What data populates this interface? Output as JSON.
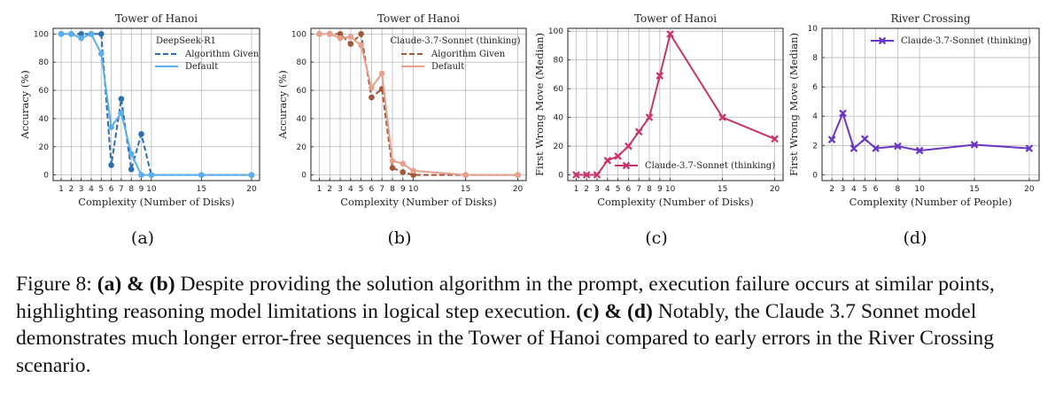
{
  "chart_data": [
    {
      "id": "a",
      "type": "line",
      "title": "Tower of Hanoi",
      "xlabel": "Complexity (Number of Disks)",
      "ylabel": "Accuracy (%)",
      "xlim": [
        0.2,
        20.8
      ],
      "ylim": [
        -4,
        104
      ],
      "xticks": [
        1,
        2,
        3,
        4,
        5,
        6,
        7,
        8,
        9,
        10,
        15,
        20
      ],
      "yticks": [
        0,
        20,
        40,
        60,
        80,
        100
      ],
      "grid": true,
      "legend_title": "DeepSeek-R1",
      "legend_position": "top-right",
      "series": [
        {
          "name": "Algorithm Given",
          "style": "dashed",
          "color": "#2f6db3",
          "x": [
            1,
            2,
            3,
            4,
            5,
            6,
            7,
            8,
            9,
            10,
            15,
            20
          ],
          "y": [
            100,
            100,
            100,
            100,
            100,
            7,
            54,
            4,
            29,
            0,
            0,
            0
          ]
        },
        {
          "name": "Default",
          "style": "solid",
          "color": "#5aaeea",
          "x": [
            1,
            2,
            3,
            4,
            5,
            6,
            7,
            8,
            9,
            10,
            15,
            20
          ],
          "y": [
            100,
            100,
            97,
            100,
            86,
            34,
            44,
            15,
            0,
            0,
            0,
            0
          ]
        }
      ]
    },
    {
      "id": "b",
      "type": "line",
      "title": "Tower of Hanoi",
      "xlabel": "Complexity (Number of Disks)",
      "ylabel": "Accuracy (%)",
      "xlim": [
        0.2,
        20.8
      ],
      "ylim": [
        -4,
        104
      ],
      "xticks": [
        1,
        2,
        3,
        4,
        5,
        6,
        7,
        8,
        9,
        10,
        15,
        20
      ],
      "yticks": [
        0,
        20,
        40,
        60,
        80,
        100
      ],
      "grid": true,
      "legend_title": "Claude-3.7-Sonnet (thinking)",
      "legend_position": "top-right",
      "series": [
        {
          "name": "Algorithm Given",
          "style": "dashed",
          "color": "#a0573a",
          "x": [
            1,
            2,
            3,
            4,
            5,
            6,
            7,
            8,
            9,
            10,
            15,
            20
          ],
          "y": [
            100,
            100,
            100,
            93,
            100,
            55,
            61,
            5,
            2,
            0,
            0,
            0
          ]
        },
        {
          "name": "Default",
          "style": "solid",
          "color": "#e8a08c",
          "x": [
            1,
            2,
            3,
            4,
            5,
            6,
            7,
            8,
            9,
            10,
            15,
            20
          ],
          "y": [
            100,
            100,
            97,
            98,
            92,
            62,
            72,
            10,
            8,
            3,
            0,
            0
          ]
        }
      ]
    },
    {
      "id": "c",
      "type": "line",
      "title": "Tower of Hanoi",
      "xlabel": "Complexity (Number of Disks)",
      "ylabel": "First Wrong Move (Median)",
      "xlim": [
        0.2,
        20.8
      ],
      "ylim": [
        -4,
        102
      ],
      "xticks": [
        1,
        2,
        3,
        4,
        5,
        6,
        7,
        8,
        9,
        10,
        15,
        20
      ],
      "yticks": [
        0,
        20,
        40,
        60,
        80,
        100
      ],
      "grid": true,
      "legend_position": "lower-right",
      "series": [
        {
          "name": "Claude-3.7-Sonnet (thinking)",
          "style": "solid",
          "color": "#c8336a",
          "x": [
            1,
            2,
            3,
            4,
            5,
            6,
            7,
            8,
            9,
            10,
            15,
            20
          ],
          "y": [
            0,
            0,
            0,
            10,
            13,
            20,
            30,
            40,
            69,
            98,
            40,
            25
          ]
        }
      ]
    },
    {
      "id": "d",
      "type": "line",
      "title": "River Crossing",
      "xlabel": "Complexity (Number of People)",
      "ylabel": "First Wrong Move (Median)",
      "xlim": [
        1.1,
        20.9
      ],
      "ylim": [
        -0.4,
        10
      ],
      "xticks": [
        2,
        3,
        4,
        5,
        6,
        8,
        10,
        15,
        20
      ],
      "yticks": [
        0,
        2,
        4,
        6,
        8,
        10
      ],
      "grid": true,
      "legend_position": "top-right",
      "series": [
        {
          "name": "Claude-3.7-Sonnet (thinking)",
          "style": "solid",
          "color": "#6a35c0",
          "x": [
            2,
            3,
            4,
            5,
            6,
            8,
            10,
            15,
            20
          ],
          "y": [
            2.4,
            4.2,
            1.8,
            2.45,
            1.8,
            1.95,
            1.65,
            2.05,
            1.8
          ]
        }
      ]
    }
  ],
  "subfigure_labels": [
    "(a)",
    "(b)",
    "(c)",
    "(d)"
  ],
  "caption": {
    "prefix": "Figure 8: ",
    "ab_label": "(a) & (b)",
    "ab_text": " Despite providing the solution algorithm in the prompt, execution failure occurs at similar points, highlighting reasoning model limitations in logical step execution. ",
    "cd_label": "(c) & (d)",
    "cd_text": " Notably, the Claude 3.7 Sonnet model demonstrates much longer error-free sequences in the Tower of Hanoi compared to early errors in the River Crossing scenario."
  }
}
